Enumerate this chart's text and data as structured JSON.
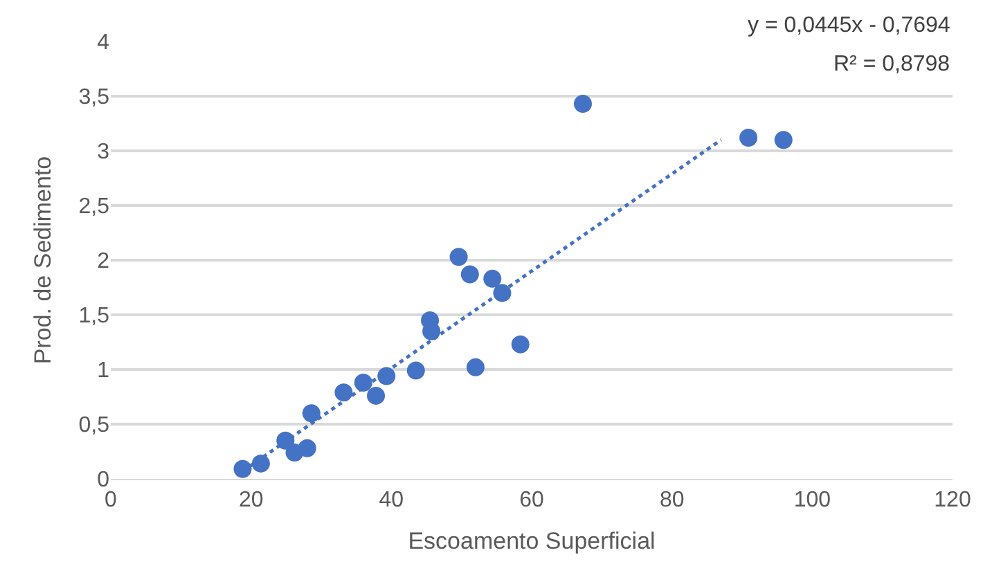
{
  "chart_data": {
    "type": "scatter",
    "xlabel": "Escoamento Superficial",
    "ylabel": "Prod. de Sedimento",
    "xlim": [
      0,
      120
    ],
    "xticks": [
      0,
      20,
      40,
      60,
      80,
      100,
      120
    ],
    "ylim": [
      0,
      4
    ],
    "yticks": [
      0,
      {
        "value": 0.5,
        "label": "0,5"
      },
      1,
      {
        "value": 1.5,
        "label": "1,5"
      },
      2,
      {
        "value": 2.5,
        "label": "2,5"
      },
      3,
      {
        "value": 3.5,
        "label": "3,5"
      },
      4
    ],
    "grid": "y",
    "marker": "circle",
    "annotations": [
      "y = 0,0445x - 0,7694",
      "R² = 0,8798"
    ],
    "series": [
      {
        "color": "#4472c4",
        "x": [
          18.8,
          21.4,
          24.9,
          26.2,
          28.0,
          28.6,
          33.2,
          36.0,
          37.8,
          39.3,
          43.5,
          45.5,
          45.7,
          49.6,
          51.2,
          52.0,
          54.4,
          55.8,
          58.4,
          67.3,
          90.9,
          95.9
        ],
        "values": [
          0.09,
          0.14,
          0.35,
          0.24,
          0.28,
          0.6,
          0.79,
          0.88,
          0.76,
          0.94,
          0.99,
          1.45,
          1.35,
          2.03,
          1.87,
          1.02,
          1.83,
          1.7,
          1.23,
          3.43,
          3.12,
          3.1
        ]
      },
      {
        "type": "line",
        "line_style": "dotted",
        "marker": "none",
        "color": "#4472c4",
        "x": [
          18.8,
          87
        ],
        "values": [
          0.07,
          3.1
        ]
      }
    ]
  }
}
